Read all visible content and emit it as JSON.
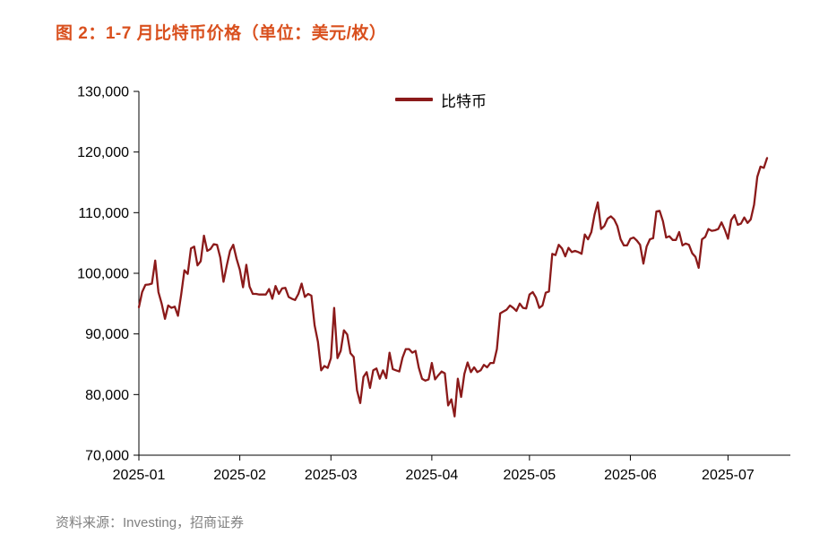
{
  "figure": {
    "title": "图 2：1-7 月比特币价格（单位：美元/枚）",
    "source": "资料来源：Investing，招商证券"
  },
  "legend": {
    "label": "比特币"
  },
  "colors": {
    "title": "#D9501E",
    "line": "#8B1A1A",
    "source_text": "#808080",
    "axis": "#000000"
  },
  "chart_data": {
    "type": "line",
    "title": "1-7 月比特币价格（单位：美元/枚）",
    "series_name": "比特币",
    "unit": "美元/枚",
    "start_date": "2025-01-01",
    "frequency": "daily",
    "ylim": [
      70000,
      130000
    ],
    "yticks": [
      70000,
      80000,
      90000,
      100000,
      110000,
      120000,
      130000
    ],
    "ytick_labels": [
      "70,000",
      "80,000",
      "90,000",
      "100,000",
      "110,000",
      "120,000",
      "130,000"
    ],
    "grid": false,
    "legend_position": "top-center",
    "xticks": [
      {
        "label": "2025-01",
        "day_index": 0
      },
      {
        "label": "2025-02",
        "day_index": 31
      },
      {
        "label": "2025-03",
        "day_index": 59
      },
      {
        "label": "2025-04",
        "day_index": 90
      },
      {
        "label": "2025-05",
        "day_index": 120
      },
      {
        "label": "2025-06",
        "day_index": 151
      },
      {
        "label": "2025-07",
        "day_index": 181
      }
    ],
    "values": [
      94400,
      96900,
      98100,
      98150,
      98300,
      102100,
      96900,
      95000,
      92500,
      94700,
      94300,
      94500,
      93000,
      96500,
      100500,
      99900,
      104100,
      104400,
      101300,
      102000,
      106200,
      103700,
      104000,
      104800,
      104700,
      102600,
      98600,
      101300,
      103700,
      104700,
      102400,
      100600,
      97700,
      101400,
      97800,
      96600,
      96600,
      96500,
      96500,
      96500,
      97400,
      95800,
      97900,
      96600,
      97500,
      97600,
      96100,
      95800,
      95600,
      96600,
      98300,
      96100,
      96600,
      96300,
      91400,
      88700,
      84000,
      84700,
      84400,
      86000,
      94300,
      86000,
      87200,
      90600,
      89900,
      86800,
      86200,
      80700,
      78600,
      82900,
      83700,
      81100,
      84000,
      84300,
      82600,
      84000,
      82700,
      86900,
      84200,
      84000,
      83800,
      86100,
      87500,
      87500,
      86900,
      87200,
      84400,
      82600,
      82300,
      82500,
      85200,
      82500,
      83200,
      83800,
      83500,
      78200,
      79200,
      76400,
      82600,
      79600,
      83400,
      85300,
      83700,
      84500,
      83700,
      84000,
      84900,
      84500,
      85200,
      85200,
      87500,
      93400,
      93700,
      94000,
      94700,
      94300,
      93800,
      95000,
      94300,
      94200,
      96500,
      96900,
      96000,
      94300,
      94700,
      96800,
      97000,
      103200,
      103000,
      104700,
      104100,
      102800,
      104200,
      103500,
      103700,
      103500,
      103200,
      106400,
      105600,
      106800,
      109700,
      111700,
      107300,
      107800,
      109000,
      109400,
      108900,
      107800,
      105600,
      104600,
      104600,
      105700,
      105900,
      105400,
      104700,
      101600,
      104400,
      105600,
      105800,
      110200,
      110300,
      108600,
      105900,
      106100,
      105500,
      105500,
      106800,
      104600,
      104900,
      104700,
      103300,
      102700,
      100900,
      105600,
      106000,
      107300,
      107000,
      107100,
      107300,
      108400,
      107200,
      105700,
      108800,
      109600,
      108000,
      108200,
      109200,
      108300,
      108900,
      111300,
      115900,
      117600,
      117400,
      119000
    ]
  }
}
